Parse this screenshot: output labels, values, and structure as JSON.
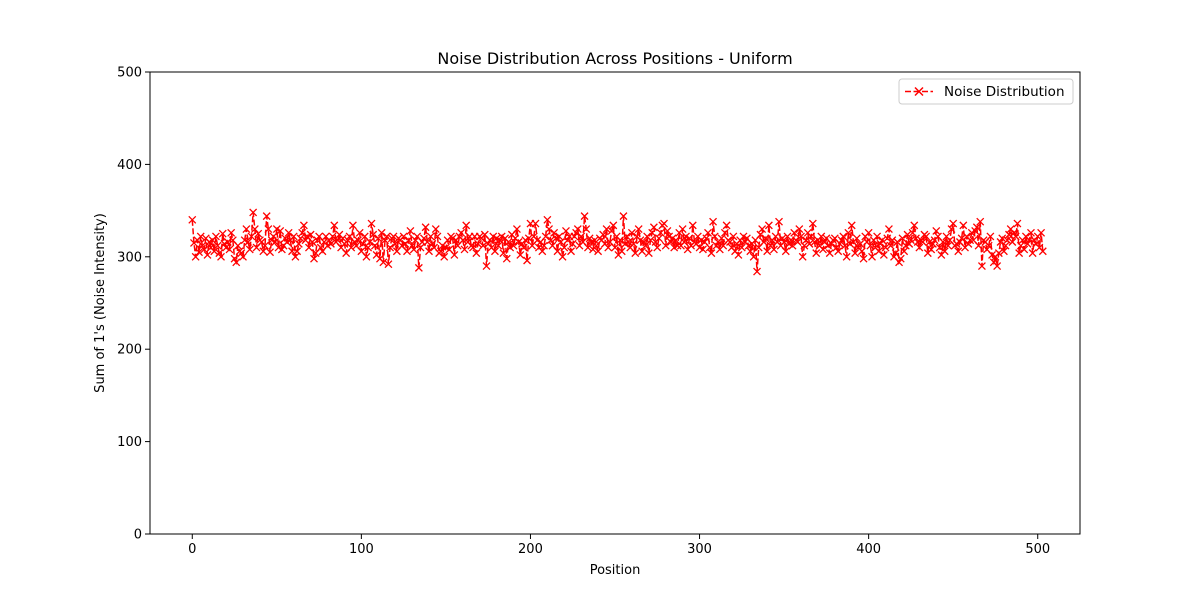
{
  "chart_data": {
    "type": "line",
    "title": "Noise Distribution Across Positions - Uniform",
    "xlabel": "Position",
    "ylabel": "Sum of 1's (Noise Intensity)",
    "xlim": [
      -25,
      525
    ],
    "ylim": [
      0,
      500
    ],
    "xticks": [
      0,
      100,
      200,
      300,
      400,
      500
    ],
    "yticks": [
      0,
      100,
      200,
      300,
      400,
      500
    ],
    "grid": false,
    "legend_position": "top-right",
    "series": [
      {
        "name": "Noise Distribution",
        "color": "#ff0000",
        "line_style": "dashed",
        "marker": "x",
        "x_start": 0,
        "x_step": 1,
        "values": [
          340,
          315,
          300,
          318,
          305,
          322,
          312,
          308,
          320,
          302,
          316,
          310,
          318,
          306,
          322,
          312,
          304,
          300,
          325,
          314,
          310,
          316,
          308,
          326,
          318,
          298,
          294,
          312,
          306,
          304,
          300,
          318,
          330,
          316,
          308,
          322,
          348,
          330,
          310,
          325,
          318,
          316,
          306,
          312,
          344,
          330,
          305,
          318,
          322,
          316,
          330,
          310,
          328,
          308,
          312,
          320,
          316,
          326,
          318,
          306,
          322,
          300,
          306,
          314,
          320,
          326,
          334,
          318,
          322,
          310,
          324,
          316,
          298,
          304,
          318,
          322,
          310,
          306,
          316,
          322,
          312,
          318,
          314,
          322,
          334,
          316,
          318,
          324,
          310,
          320,
          314,
          304,
          318,
          322,
          310,
          334,
          316,
          312,
          318,
          326,
          306,
          314,
          322,
          300,
          310,
          316,
          336,
          324,
          312,
          302,
          320,
          298,
          326,
          294,
          318,
          322,
          292,
          310,
          320,
          322,
          314,
          306,
          320,
          318,
          312,
          322,
          314,
          306,
          318,
          328,
          312,
          308,
          318,
          322,
          288,
          310,
          316,
          320,
          332,
          316,
          306,
          322,
          314,
          310,
          330,
          322,
          304,
          306,
          312,
          300,
          310,
          318,
          308,
          322,
          320,
          302,
          318,
          312,
          322,
          326,
          318,
          308,
          334,
          316,
          322,
          312,
          310,
          322,
          304,
          314,
          322,
          320,
          312,
          324,
          290,
          314,
          318,
          310,
          322,
          306,
          320,
          312,
          318,
          322,
          304,
          320,
          298,
          316,
          310,
          324,
          312,
          320,
          330,
          316,
          302,
          314,
          310,
          318,
          296,
          320,
          336,
          312,
          322,
          336,
          318,
          310,
          316,
          306,
          312,
          322,
          340,
          330,
          318,
          312,
          326,
          320,
          306,
          322,
          316,
          300,
          310,
          328,
          318,
          322,
          306,
          314,
          322,
          326,
          330,
          312,
          322,
          316,
          344,
          330,
          310,
          320,
          316,
          308,
          318,
          312,
          306,
          320,
          318,
          324,
          314,
          330,
          310,
          316,
          328,
          334,
          310,
          322,
          302,
          318,
          306,
          344,
          314,
          322,
          316,
          310,
          326,
          314,
          304,
          322,
          330,
          318,
          306,
          316,
          312,
          322,
          304,
          318,
          326,
          332,
          316,
          310,
          320,
          326,
          334,
          336,
          312,
          328,
          322,
          316,
          320,
          310,
          318,
          312,
          326,
          312,
          330,
          316,
          322,
          308,
          320,
          312,
          334,
          316,
          314,
          322,
          310,
          318,
          308,
          316,
          320,
          326,
          310,
          304,
          338,
          322,
          312,
          316,
          308,
          320,
          312,
          326,
          334,
          318,
          316,
          310,
          322,
          306,
          314,
          302,
          318,
          310,
          322,
          316,
          320,
          312,
          306,
          314,
          300,
          318,
          284,
          310,
          324,
          330,
          316,
          320,
          306,
          334,
          312,
          318,
          308,
          322,
          316,
          338,
          312,
          320,
          316,
          306,
          322,
          314,
          318,
          312,
          326,
          318,
          316,
          330,
          322,
          300,
          312,
          318,
          326,
          314,
          322,
          336,
          316,
          304,
          318,
          312,
          322,
          308,
          316,
          320,
          312,
          304,
          314,
          318,
          320,
          310,
          306,
          314,
          318,
          322,
          312,
          300,
          326,
          314,
          334,
          316,
          304,
          320,
          310,
          314,
          306,
          298,
          322,
          316,
          326,
          312,
          300,
          318,
          310,
          322,
          306,
          314,
          318,
          302,
          310,
          320,
          330,
          312,
          318,
          300,
          304,
          316,
          294,
          298,
          320,
          306,
          312,
          324,
          314,
          318,
          326,
          334,
          320,
          316,
          310,
          318,
          316,
          324,
          322,
          304,
          316,
          308,
          314,
          318,
          328,
          322,
          310,
          302,
          316,
          306,
          322,
          312,
          318,
          330,
          336,
          312,
          314,
          306,
          316,
          320,
          334,
          310,
          322,
          314,
          318,
          326,
          318,
          328,
          332,
          312,
          338,
          290,
          318,
          316,
          308,
          312,
          322,
          302,
          294,
          300,
          290,
          304,
          316,
          320,
          306,
          312,
          318,
          324,
          330,
          316,
          326,
          322,
          336,
          304,
          312,
          318,
          308,
          322,
          314,
          318,
          326,
          304,
          318,
          314,
          322,
          310,
          326,
          306
        ]
      }
    ]
  }
}
